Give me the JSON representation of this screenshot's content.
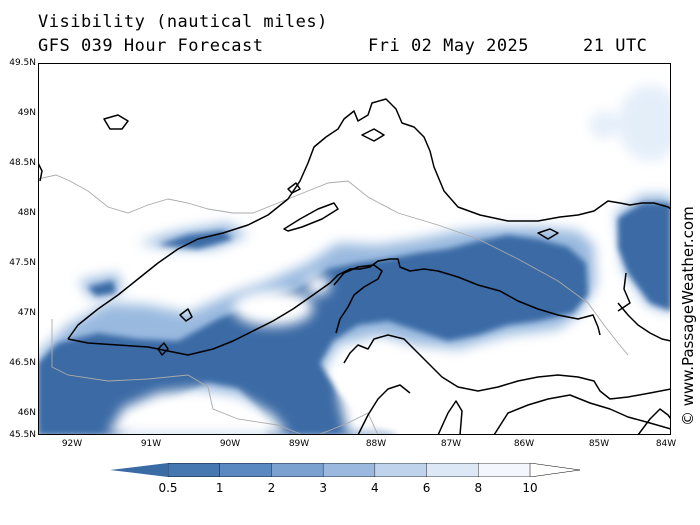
{
  "header": {
    "title": "Visibility (nautical miles)",
    "forecast": "GFS 039 Hour Forecast",
    "date": "Fri 02 May 2025",
    "time": "21 UTC"
  },
  "map": {
    "lat_labels": [
      "49.5N",
      "49N",
      "48.5N",
      "48N",
      "47.5N",
      "47N",
      "46.5N",
      "46N",
      "45.5N"
    ],
    "lon_labels": [
      "92W",
      "91W",
      "90W",
      "89W",
      "88W",
      "87W",
      "86W",
      "85W",
      "84W"
    ],
    "colors": {
      "dark": "#3a6ba5",
      "mid": "#6e9bd0",
      "light": "#b6cfee",
      "pale": "#e4eef9",
      "border": "#aaaaaa",
      "coast": "#000000"
    }
  },
  "credit": "© www.PassageWeather.com",
  "colorbar": {
    "labels": [
      "0.5",
      "1",
      "2",
      "3",
      "4",
      "6",
      "8",
      "10"
    ],
    "colors": [
      "#3a6ba5",
      "#4577b0",
      "#5a88c0",
      "#7aa1d0",
      "#9bb9de",
      "#bfd3ec",
      "#dde8f6",
      "#f3f7fd",
      "#ffffff"
    ]
  }
}
